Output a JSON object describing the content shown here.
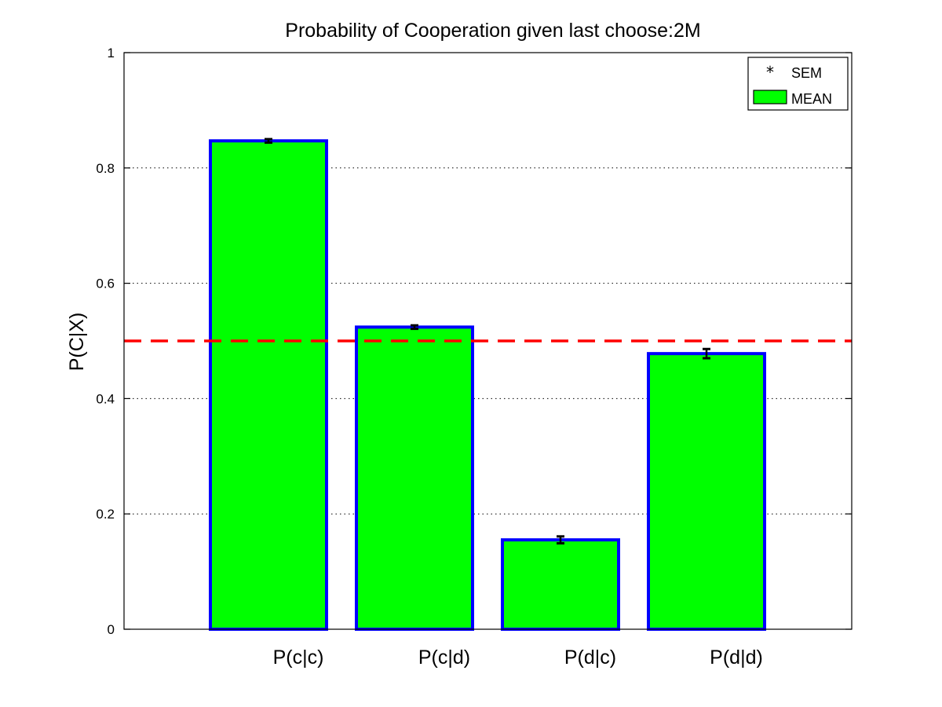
{
  "chart_data": {
    "type": "bar",
    "title": "Probability of Cooperation given last choose:2M",
    "xlabel": "",
    "ylabel": "P(C|X)",
    "categories": [
      "P(c|c)",
      "P(c|d)",
      "P(d|c)",
      "P(d|d)"
    ],
    "values": [
      0.847,
      0.524,
      0.155,
      0.478
    ],
    "sem": [
      0.003,
      0.003,
      0.006,
      0.008
    ],
    "ylim": [
      0,
      1
    ],
    "yticks": [
      "0",
      "0.2",
      "0.4",
      "0.6",
      "0.8",
      "1"
    ],
    "ytick_values": [
      0,
      0.2,
      0.4,
      0.6,
      0.8,
      1
    ],
    "reference_line": 0.5,
    "grid": "horizontal dotted",
    "legend": {
      "placement": "top-right",
      "entries": [
        {
          "label": "SEM",
          "marker": "asterisk"
        },
        {
          "label": "MEAN",
          "marker": "bar"
        }
      ]
    },
    "colors": {
      "bar_fill": "#00ff00",
      "bar_edge": "#0000ff",
      "reference_line": "#ff0000",
      "error_bar": "#000000"
    }
  }
}
